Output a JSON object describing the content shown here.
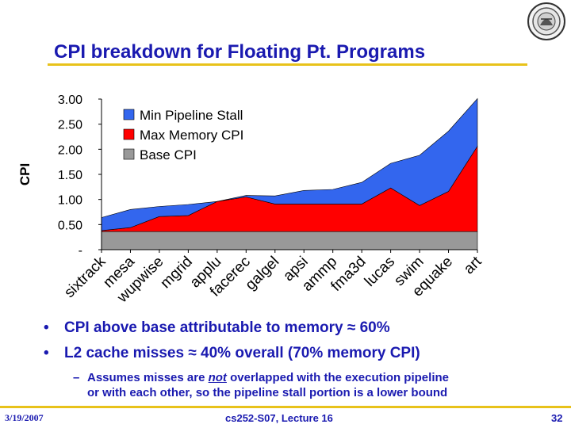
{
  "slide": {
    "title": "CPI breakdown for Floating Pt. Programs",
    "bullets": [
      {
        "text": "CPI above base attributable to memory ≈ 60%"
      },
      {
        "text": "L2 cache misses ≈  40% overall (70% memory CPI)"
      }
    ],
    "sub_bullet": {
      "dash": "–",
      "part1": "Assumes misses are ",
      "emph": "not",
      "part2": " overlapped with the execution pipeline",
      "line2": "or with each other, so the pipeline stall portion is a lower bound"
    },
    "footer": {
      "date": "3/19/2007",
      "course": "cs252-S07, Lecture 16",
      "page": "32"
    },
    "seal_icon": "university-seal-icon",
    "colors": {
      "title": "#1a1ab0",
      "rule": "#e8c21a"
    }
  },
  "chart_data": {
    "type": "area",
    "stacked": true,
    "ylabel": "CPI",
    "ylim": [
      0,
      3.0
    ],
    "yticks": [
      "-",
      "0.50",
      "1.00",
      "1.50",
      "2.00",
      "2.50",
      "3.00"
    ],
    "categories": [
      "sixtrack",
      "mesa",
      "wupwise",
      "mgrid",
      "applu",
      "facerec",
      "galgel",
      "apsi",
      "ammp",
      "fma3d",
      "lucas",
      "swim",
      "equake",
      "art"
    ],
    "series": [
      {
        "name": "Base CPI",
        "color": "#999999",
        "values": [
          0.36,
          0.36,
          0.36,
          0.36,
          0.36,
          0.36,
          0.36,
          0.36,
          0.36,
          0.36,
          0.36,
          0.36,
          0.36,
          0.36
        ]
      },
      {
        "name": "Max Memory CPI",
        "color": "#ff0000",
        "values": [
          0.02,
          0.08,
          0.3,
          0.32,
          0.6,
          0.69,
          0.55,
          0.55,
          0.55,
          0.55,
          0.87,
          0.52,
          0.8,
          1.7
        ]
      },
      {
        "name": "Min Pipeline Stall",
        "color": "#3366ee",
        "values": [
          0.26,
          0.36,
          0.2,
          0.22,
          0.0,
          0.03,
          0.16,
          0.27,
          0.29,
          0.43,
          0.49,
          1.0,
          1.2,
          0.95
        ]
      }
    ],
    "legend_order": [
      "Min Pipeline Stall",
      "Max Memory CPI",
      "Base CPI"
    ],
    "legend_position": "top-left",
    "grid": false
  }
}
